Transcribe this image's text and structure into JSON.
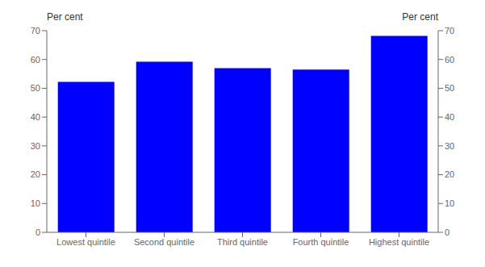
{
  "chart_data": {
    "type": "bar",
    "categories": [
      "Lowest quintile",
      "Second quintile",
      "Third quintile",
      "Fourth quintile",
      "Highest quintile"
    ],
    "values": [
      52.2,
      59.2,
      57.0,
      56.5,
      68.2
    ],
    "color": "#0000ff",
    "ylabel": "Per cent",
    "y2label": "Per cent",
    "ylim": [
      0,
      70
    ],
    "yticks": [
      0,
      10,
      20,
      30,
      40,
      50,
      60,
      70
    ],
    "y2lim": [
      0,
      70
    ],
    "y2ticks": [
      0,
      10,
      20,
      30,
      40,
      50,
      60,
      70
    ],
    "grid": false
  }
}
